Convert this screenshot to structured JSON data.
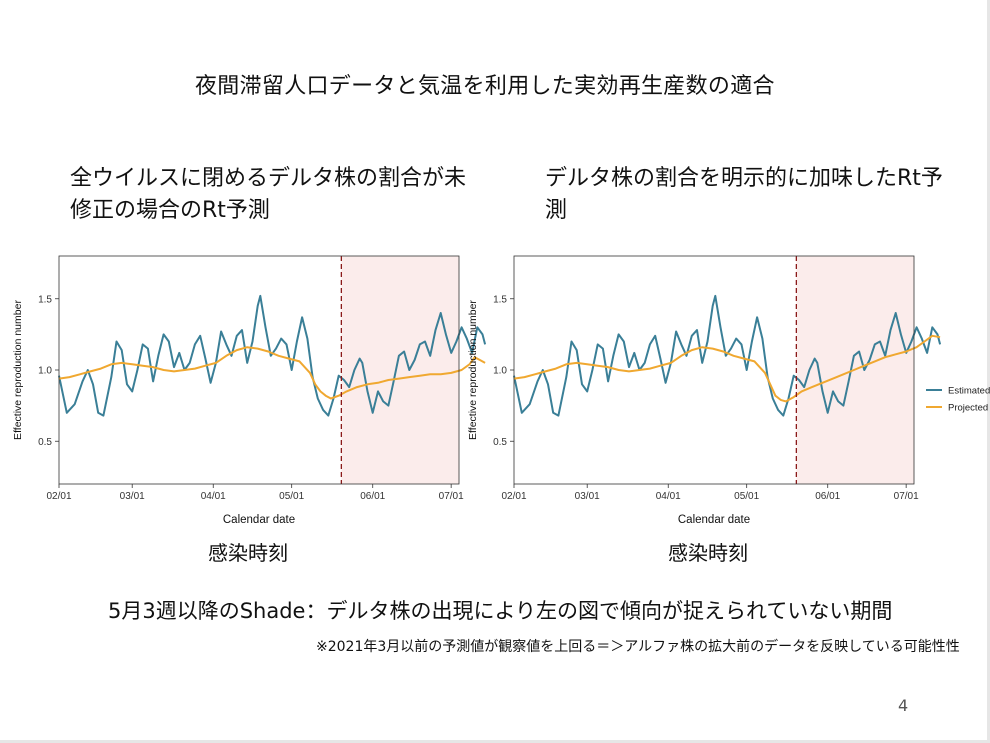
{
  "slide": {
    "title": "夜間滞留人口データと気温を利用した実効再生産数の適合",
    "left_heading": "全ウイルスに閉めるデルタ株の割合が未修正の場合のRt予測",
    "right_heading": "デルタ株の割合を明示的に加味したRt予測",
    "left_axis_caption": "感染時刻",
    "right_axis_caption": "感染時刻",
    "note_main": "5月3週以降のShade：デルタ株の出現により左の図で傾向が捉えられていない期間",
    "note_sub": "※2021年3月以前の予測値が観察値を上回る＝＞アルファ株の拡大前のデータを反映している可能性性",
    "page_number": "4"
  },
  "chart_data": [
    {
      "type": "line",
      "xlabel": "Calendar date",
      "ylabel": "Effective reproduction number",
      "x_ticks": [
        "02/01",
        "03/01",
        "04/01",
        "05/01",
        "06/01",
        "07/01"
      ],
      "y_ticks": [
        "0.5",
        "1.0",
        "1.5"
      ],
      "ylim": [
        0.2,
        1.8
      ],
      "x_range": [
        "2021-02-01",
        "2021-07-04"
      ],
      "shade_start": "2021-05-20",
      "vline": "2021-05-20",
      "series": [
        {
          "name": "Estimated",
          "color": "#3a7f97",
          "points": [
            [
              0,
              0.96
            ],
            [
              3,
              0.7
            ],
            [
              6,
              0.76
            ],
            [
              9,
              0.92
            ],
            [
              11,
              1.0
            ],
            [
              13,
              0.9
            ],
            [
              15,
              0.7
            ],
            [
              17,
              0.68
            ],
            [
              20,
              0.95
            ],
            [
              22,
              1.2
            ],
            [
              24,
              1.14
            ],
            [
              26,
              0.9
            ],
            [
              28,
              0.85
            ],
            [
              30,
              1.0
            ],
            [
              32,
              1.18
            ],
            [
              34,
              1.15
            ],
            [
              36,
              0.92
            ],
            [
              38,
              1.1
            ],
            [
              40,
              1.25
            ],
            [
              42,
              1.2
            ],
            [
              44,
              1.02
            ],
            [
              46,
              1.12
            ],
            [
              48,
              1.0
            ],
            [
              50,
              1.05
            ],
            [
              52,
              1.18
            ],
            [
              54,
              1.24
            ],
            [
              56,
              1.08
            ],
            [
              58,
              0.91
            ],
            [
              60,
              1.05
            ],
            [
              62,
              1.27
            ],
            [
              64,
              1.18
            ],
            [
              66,
              1.1
            ],
            [
              68,
              1.24
            ],
            [
              70,
              1.28
            ],
            [
              72,
              1.05
            ],
            [
              74,
              1.2
            ],
            [
              76,
              1.45
            ],
            [
              77,
              1.52
            ],
            [
              79,
              1.3
            ],
            [
              81,
              1.1
            ],
            [
              83,
              1.15
            ],
            [
              85,
              1.22
            ],
            [
              87,
              1.18
            ],
            [
              89,
              1.0
            ],
            [
              91,
              1.2
            ],
            [
              93,
              1.37
            ],
            [
              95,
              1.22
            ],
            [
              97,
              0.95
            ],
            [
              99,
              0.8
            ],
            [
              101,
              0.72
            ],
            [
              103,
              0.68
            ],
            [
              105,
              0.8
            ],
            [
              107,
              0.96
            ],
            [
              109,
              0.93
            ],
            [
              111,
              0.88
            ],
            [
              113,
              1.0
            ],
            [
              115,
              1.08
            ],
            [
              116,
              1.05
            ],
            [
              118,
              0.85
            ],
            [
              120,
              0.7
            ],
            [
              122,
              0.85
            ],
            [
              124,
              0.78
            ],
            [
              126,
              0.75
            ],
            [
              128,
              0.92
            ],
            [
              130,
              1.1
            ],
            [
              132,
              1.13
            ],
            [
              134,
              1.0
            ],
            [
              136,
              1.07
            ],
            [
              138,
              1.18
            ],
            [
              140,
              1.2
            ],
            [
              142,
              1.1
            ],
            [
              144,
              1.28
            ],
            [
              146,
              1.4
            ],
            [
              148,
              1.25
            ],
            [
              150,
              1.12
            ],
            [
              152,
              1.2
            ],
            [
              154,
              1.3
            ],
            [
              156,
              1.22
            ],
            [
              158,
              1.12
            ],
            [
              160,
              1.3
            ],
            [
              162,
              1.25
            ],
            [
              163,
              1.18
            ]
          ]
        },
        {
          "name": "Projected",
          "color": "#f0a830",
          "points": [
            [
              0,
              0.94
            ],
            [
              4,
              0.95
            ],
            [
              8,
              0.97
            ],
            [
              12,
              0.99
            ],
            [
              16,
              1.01
            ],
            [
              20,
              1.04
            ],
            [
              24,
              1.05
            ],
            [
              28,
              1.04
            ],
            [
              32,
              1.03
            ],
            [
              36,
              1.02
            ],
            [
              40,
              1.0
            ],
            [
              44,
              0.99
            ],
            [
              48,
              1.0
            ],
            [
              52,
              1.01
            ],
            [
              56,
              1.03
            ],
            [
              60,
              1.05
            ],
            [
              64,
              1.1
            ],
            [
              68,
              1.14
            ],
            [
              72,
              1.16
            ],
            [
              76,
              1.15
            ],
            [
              80,
              1.13
            ],
            [
              84,
              1.1
            ],
            [
              88,
              1.08
            ],
            [
              92,
              1.06
            ],
            [
              96,
              0.98
            ],
            [
              98,
              0.9
            ],
            [
              100,
              0.85
            ],
            [
              102,
              0.82
            ],
            [
              104,
              0.8
            ],
            [
              107,
              0.82
            ],
            [
              110,
              0.85
            ],
            [
              114,
              0.88
            ],
            [
              118,
              0.9
            ],
            [
              122,
              0.91
            ],
            [
              126,
              0.93
            ],
            [
              130,
              0.94
            ],
            [
              134,
              0.95
            ],
            [
              138,
              0.96
            ],
            [
              142,
              0.97
            ],
            [
              146,
              0.97
            ],
            [
              150,
              0.98
            ],
            [
              154,
              1.0
            ],
            [
              157,
              1.04
            ],
            [
              159,
              1.09
            ],
            [
              161,
              1.07
            ],
            [
              163,
              1.05
            ]
          ]
        }
      ]
    },
    {
      "type": "line",
      "xlabel": "Calendar date",
      "ylabel": "Effective reproduction number",
      "x_ticks": [
        "02/01",
        "03/01",
        "04/01",
        "05/01",
        "06/01",
        "07/01"
      ],
      "y_ticks": [
        "0.5",
        "1.0",
        "1.5"
      ],
      "ylim": [
        0.2,
        1.8
      ],
      "x_range": [
        "2021-02-01",
        "2021-07-04"
      ],
      "shade_start": "2021-05-20",
      "vline": "2021-05-20",
      "legend_position": "right",
      "series": [
        {
          "name": "Estimated",
          "color": "#3a7f97",
          "points": [
            [
              0,
              0.96
            ],
            [
              3,
              0.7
            ],
            [
              6,
              0.76
            ],
            [
              9,
              0.92
            ],
            [
              11,
              1.0
            ],
            [
              13,
              0.9
            ],
            [
              15,
              0.7
            ],
            [
              17,
              0.68
            ],
            [
              20,
              0.95
            ],
            [
              22,
              1.2
            ],
            [
              24,
              1.14
            ],
            [
              26,
              0.9
            ],
            [
              28,
              0.85
            ],
            [
              30,
              1.0
            ],
            [
              32,
              1.18
            ],
            [
              34,
              1.15
            ],
            [
              36,
              0.92
            ],
            [
              38,
              1.1
            ],
            [
              40,
              1.25
            ],
            [
              42,
              1.2
            ],
            [
              44,
              1.02
            ],
            [
              46,
              1.12
            ],
            [
              48,
              1.0
            ],
            [
              50,
              1.05
            ],
            [
              52,
              1.18
            ],
            [
              54,
              1.24
            ],
            [
              56,
              1.08
            ],
            [
              58,
              0.91
            ],
            [
              60,
              1.05
            ],
            [
              62,
              1.27
            ],
            [
              64,
              1.18
            ],
            [
              66,
              1.1
            ],
            [
              68,
              1.24
            ],
            [
              70,
              1.28
            ],
            [
              72,
              1.05
            ],
            [
              74,
              1.2
            ],
            [
              76,
              1.45
            ],
            [
              77,
              1.52
            ],
            [
              79,
              1.3
            ],
            [
              81,
              1.1
            ],
            [
              83,
              1.15
            ],
            [
              85,
              1.22
            ],
            [
              87,
              1.18
            ],
            [
              89,
              1.0
            ],
            [
              91,
              1.2
            ],
            [
              93,
              1.37
            ],
            [
              95,
              1.22
            ],
            [
              97,
              0.95
            ],
            [
              99,
              0.8
            ],
            [
              101,
              0.72
            ],
            [
              103,
              0.68
            ],
            [
              105,
              0.8
            ],
            [
              107,
              0.96
            ],
            [
              109,
              0.93
            ],
            [
              111,
              0.88
            ],
            [
              113,
              1.0
            ],
            [
              115,
              1.08
            ],
            [
              116,
              1.05
            ],
            [
              118,
              0.85
            ],
            [
              120,
              0.7
            ],
            [
              122,
              0.85
            ],
            [
              124,
              0.78
            ],
            [
              126,
              0.75
            ],
            [
              128,
              0.92
            ],
            [
              130,
              1.1
            ],
            [
              132,
              1.13
            ],
            [
              134,
              1.0
            ],
            [
              136,
              1.07
            ],
            [
              138,
              1.18
            ],
            [
              140,
              1.2
            ],
            [
              142,
              1.1
            ],
            [
              144,
              1.28
            ],
            [
              146,
              1.4
            ],
            [
              148,
              1.25
            ],
            [
              150,
              1.12
            ],
            [
              152,
              1.2
            ],
            [
              154,
              1.3
            ],
            [
              156,
              1.22
            ],
            [
              158,
              1.12
            ],
            [
              160,
              1.3
            ],
            [
              162,
              1.25
            ],
            [
              163,
              1.18
            ]
          ]
        },
        {
          "name": "Projected",
          "color": "#f0a830",
          "points": [
            [
              0,
              0.94
            ],
            [
              4,
              0.95
            ],
            [
              8,
              0.97
            ],
            [
              12,
              0.99
            ],
            [
              16,
              1.01
            ],
            [
              20,
              1.04
            ],
            [
              24,
              1.05
            ],
            [
              28,
              1.04
            ],
            [
              32,
              1.03
            ],
            [
              36,
              1.02
            ],
            [
              40,
              1.0
            ],
            [
              44,
              0.99
            ],
            [
              48,
              1.0
            ],
            [
              52,
              1.01
            ],
            [
              56,
              1.03
            ],
            [
              60,
              1.05
            ],
            [
              64,
              1.1
            ],
            [
              68,
              1.14
            ],
            [
              72,
              1.16
            ],
            [
              76,
              1.15
            ],
            [
              80,
              1.13
            ],
            [
              84,
              1.1
            ],
            [
              88,
              1.08
            ],
            [
              92,
              1.06
            ],
            [
              96,
              0.98
            ],
            [
              98,
              0.9
            ],
            [
              100,
              0.82
            ],
            [
              102,
              0.79
            ],
            [
              104,
              0.78
            ],
            [
              107,
              0.81
            ],
            [
              110,
              0.85
            ],
            [
              114,
              0.88
            ],
            [
              118,
              0.91
            ],
            [
              122,
              0.94
            ],
            [
              126,
              0.97
            ],
            [
              130,
              1.0
            ],
            [
              134,
              1.03
            ],
            [
              138,
              1.06
            ],
            [
              142,
              1.09
            ],
            [
              146,
              1.11
            ],
            [
              150,
              1.13
            ],
            [
              154,
              1.16
            ],
            [
              157,
              1.2
            ],
            [
              160,
              1.24
            ],
            [
              163,
              1.23
            ]
          ]
        }
      ]
    }
  ]
}
